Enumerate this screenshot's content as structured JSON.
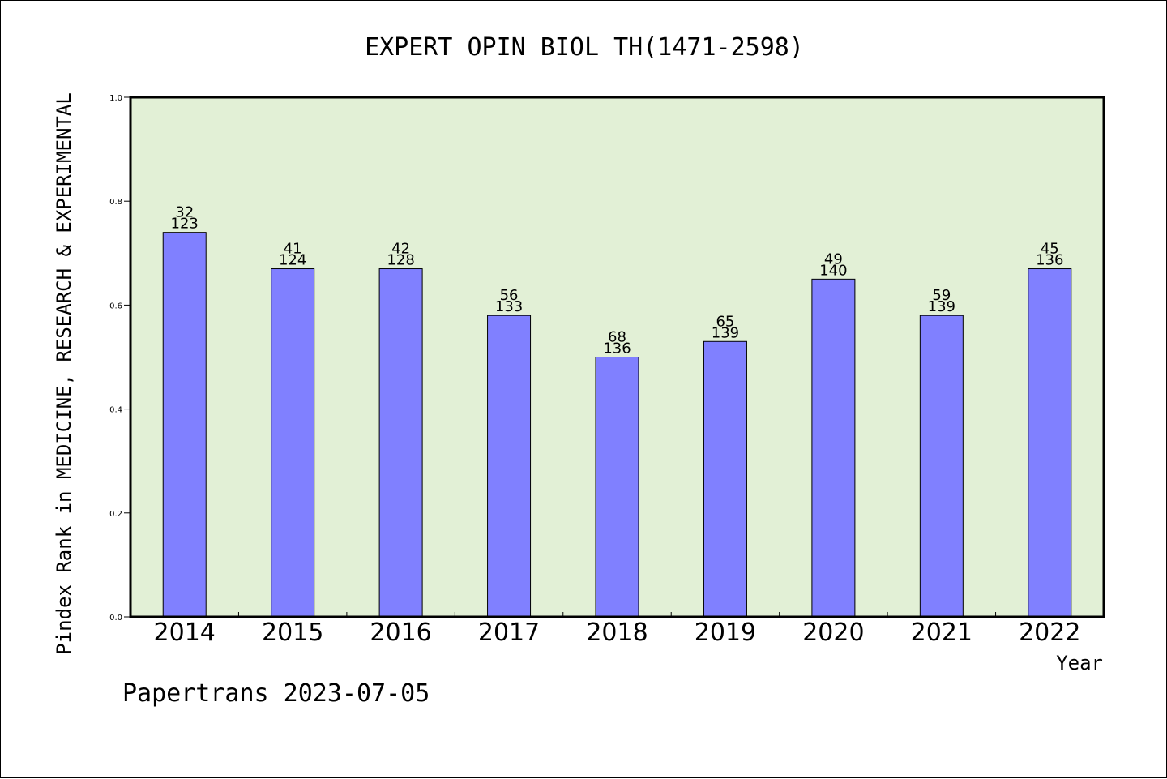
{
  "chart_data": {
    "type": "bar",
    "title": "EXPERT OPIN BIOL TH(1471-2598)",
    "ylabel": "Pindex Rank in MEDICINE, RESEARCH & EXPERIMENTAL",
    "xlabel": "Year",
    "footer": "Papertrans 2023-07-05",
    "ylim": [
      0,
      1.0
    ],
    "yticks": [
      "0.0",
      "0.2",
      "0.4",
      "0.6",
      "0.8",
      "1.0"
    ],
    "categories": [
      "2014",
      "2015",
      "2016",
      "2017",
      "2018",
      "2019",
      "2020",
      "2021",
      "2022"
    ],
    "values": [
      0.74,
      0.67,
      0.67,
      0.58,
      0.5,
      0.53,
      0.65,
      0.58,
      0.67
    ],
    "rank": [
      "32",
      "41",
      "42",
      "56",
      "68",
      "65",
      "49",
      "59",
      "45"
    ],
    "total": [
      "123",
      "124",
      "128",
      "133",
      "136",
      "139",
      "140",
      "139",
      "136"
    ],
    "colors": {
      "plot_bg": "#e2f0d6",
      "bar": "#8080ff"
    },
    "grid": false,
    "legend": "none"
  }
}
